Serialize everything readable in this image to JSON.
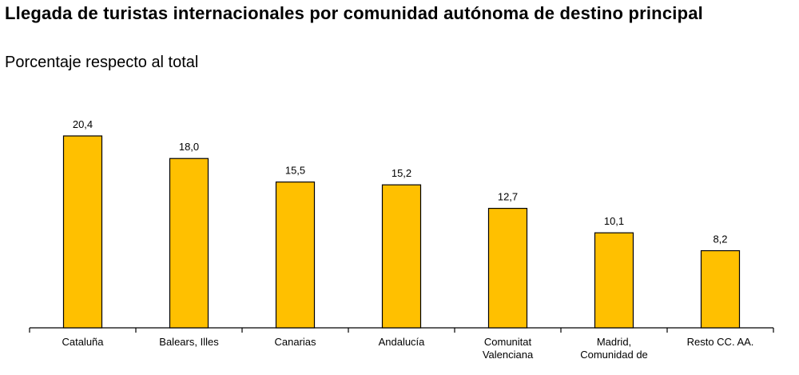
{
  "header": {
    "title": "Llegada de turistas internacionales por comunidad autónoma de destino principal",
    "subtitle": "Porcentaje respecto al total"
  },
  "chart_data": {
    "type": "bar",
    "title": "Llegada de turistas internacionales por comunidad autónoma de destino principal",
    "subtitle": "Porcentaje respecto al total",
    "categories": [
      "Cataluña",
      "Balears, Illes",
      "Canarias",
      "Andalucía",
      "Comunitat Valenciana",
      "Madrid, Comunidad de",
      "Resto CC. AA."
    ],
    "category_lines": [
      [
        "Cataluña"
      ],
      [
        "Balears, Illes"
      ],
      [
        "Canarias"
      ],
      [
        "Andalucía"
      ],
      [
        "Comunitat",
        "Valenciana"
      ],
      [
        "Madrid,",
        "Comunidad de"
      ],
      [
        "Resto CC. AA."
      ]
    ],
    "values": [
      20.4,
      18.0,
      15.5,
      15.2,
      12.7,
      10.1,
      8.2
    ],
    "value_labels": [
      "20,4",
      "18,0",
      "15,5",
      "15,2",
      "12,7",
      "10,1",
      "8,2"
    ],
    "xlabel": "",
    "ylabel": "",
    "ylim": [
      0,
      20.4
    ],
    "grid": false,
    "legend": "none",
    "colors": {
      "bar": "#FFC000",
      "outline": "#000000"
    }
  }
}
